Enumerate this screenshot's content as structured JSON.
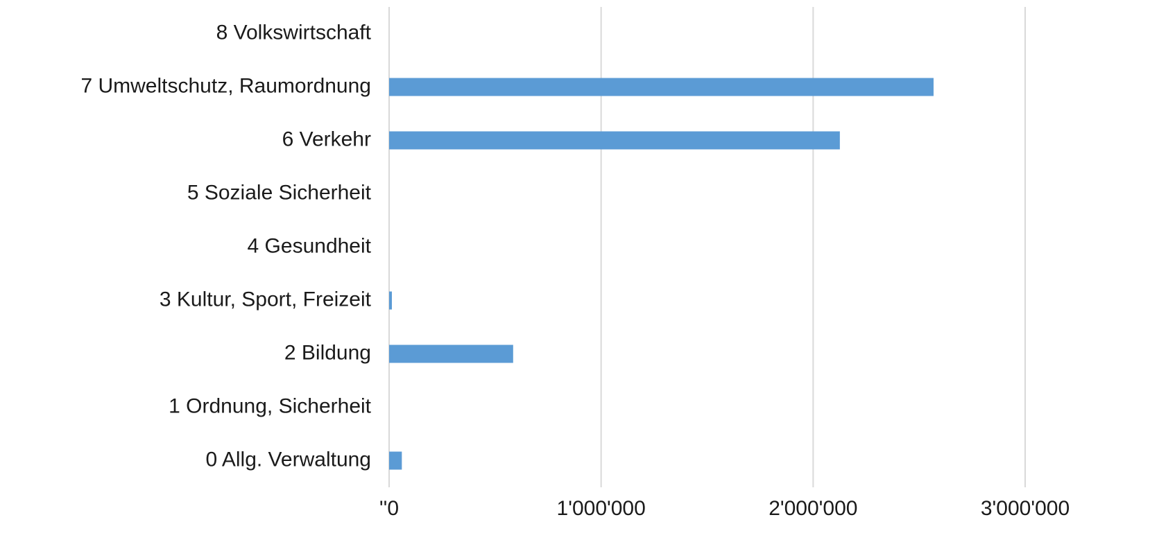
{
  "chart_data": {
    "type": "bar",
    "orientation": "horizontal",
    "categories": [
      "0 Allg. Verwaltung",
      "1 Ordnung, Sicherheit",
      "2 Bildung",
      "3 Kultur, Sport, Freizeit",
      "4 Gesundheit",
      "5 Soziale Sicherheit",
      "6 Verkehr",
      "7 Umweltschutz, Raumordnung",
      "8 Volkswirtschaft"
    ],
    "values": [
      60000,
      0,
      585000,
      13000,
      0,
      0,
      2126000,
      2568000,
      0
    ],
    "color": "#5b9bd5",
    "xlim": [
      0,
      3000000
    ],
    "xticks": [
      {
        "value": 0,
        "label": "''0"
      },
      {
        "value": 1000000,
        "label": "1'000'000"
      },
      {
        "value": 2000000,
        "label": "2'000'000"
      },
      {
        "value": 3000000,
        "label": "3'000'000"
      }
    ],
    "grid": true
  }
}
